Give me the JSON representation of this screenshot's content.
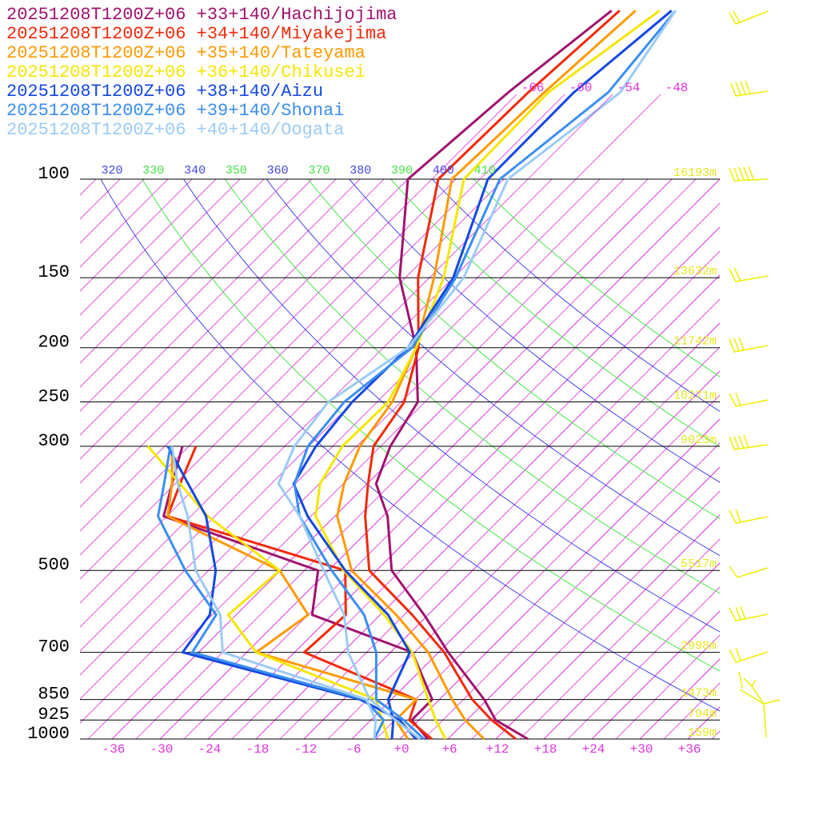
{
  "chart_data": {
    "type": "skewt",
    "pressure": [
      1000,
      925,
      850,
      700,
      600,
      500,
      400,
      350,
      300,
      250,
      200,
      150,
      100,
      70,
      50
    ],
    "series": [
      {
        "name": "20251208T1200Z+06 +33+140/Hachijojima",
        "color": "#a0126e",
        "values": [
          16.0,
          9.6,
          5.6,
          -4.8,
          -12.5,
          -22.1,
          -29.4,
          -34.9,
          -37.8,
          -39.9,
          -46.9,
          -57.7,
          -69.0,
          -67.3,
          -64.6
        ],
        "dewpoint": [
          3.5,
          -0.9,
          -0.9,
          -9.3,
          -26.5,
          -31.3,
          -57.4,
          -60.4,
          -63.8,
          null,
          null,
          null,
          null,
          null,
          null
        ]
      },
      {
        "name": "20251208T1200Z+06 +34+140/Miyakejima",
        "color": "#f02a0a",
        "values": [
          14.5,
          9.1,
          4.1,
          -5.3,
          -14.0,
          -24.9,
          -32.2,
          -35.9,
          -39.9,
          -41.6,
          -46.6,
          -55.4,
          -65.2,
          -64.8,
          -63.6
        ],
        "dewpoint": [
          4.0,
          -1.2,
          -2.9,
          -22.8,
          -22.3,
          -27.9,
          -56.9,
          -59.4,
          -62.1,
          null,
          null,
          null,
          null,
          null,
          null
        ]
      },
      {
        "name": "20251208T1200Z+06 +35+140/Tateyama",
        "color": "#ff9a00",
        "values": [
          10.5,
          5.8,
          1.6,
          -7.3,
          -16.0,
          -27.1,
          -35.7,
          -38.9,
          -41.6,
          -43.1,
          -46.9,
          -53.4,
          -63.5,
          -62.8,
          -61.6
        ],
        "dewpoint": [
          1.0,
          -2.9,
          -2.9,
          -28.8,
          -27.0,
          -36.1,
          -56.9,
          -60.4,
          -65.1,
          null,
          null,
          null,
          null,
          null,
          null
        ]
      },
      {
        "name": "20251208T1200Z+06 +36+140/Chikusei",
        "color": "#f5e600",
        "values": [
          5.7,
          2.1,
          -1.4,
          -9.3,
          -17.5,
          -28.1,
          -38.4,
          -41.9,
          -43.8,
          -43.6,
          -46.9,
          -52.2,
          -62.0,
          -62.3,
          -58.6
        ],
        "dewpoint": [
          -1.5,
          -4.6,
          -7.9,
          -28.8,
          -37.0,
          -36.1,
          -51.9,
          -59.4,
          -68.1,
          null,
          null,
          null,
          null,
          null,
          null
        ]
      },
      {
        "name": "20251208T1200Z+06 +38+140/Aizu",
        "color": "#1448e0",
        "values": [
          -1.0,
          -3.2,
          -6.4,
          -9.6,
          -17.0,
          -27.9,
          -39.4,
          -45.2,
          -47.1,
          -48.1,
          -47.9,
          -51.0,
          -59.0,
          -59.1,
          -57.1
        ],
        "dewpoint": [
          2.0,
          -2.4,
          -9.9,
          -38.0,
          -39.3,
          -44.1,
          -52.1,
          -58.4,
          -65.6,
          null,
          null,
          null,
          null,
          null,
          null
        ]
      },
      {
        "name": "20251208T1200Z+06 +39+140/Shonai",
        "color": "#3a8ef0",
        "values": [
          3.0,
          -1.9,
          -7.9,
          -13.8,
          -20.0,
          -29.6,
          -40.4,
          -45.1,
          -48.1,
          -49.1,
          -47.4,
          -50.7,
          -57.5,
          -54.8,
          -56.6
        ],
        "dewpoint": [
          -3.2,
          -4.4,
          -9.4,
          -36.8,
          -38.5,
          -47.9,
          -58.1,
          -61.4,
          -65.3,
          null,
          null,
          null,
          null,
          null,
          null
        ]
      },
      {
        "name": "20251208T1200Z+06 +40+140/Oogata",
        "color": "#9ccbf5",
        "values": [
          2.5,
          -2.9,
          -8.7,
          -17.3,
          -22.5,
          -30.6,
          -40.4,
          -47.1,
          -49.8,
          -51.1,
          -47.9,
          -49.7,
          -56.5,
          -53.3,
          -56.6
        ],
        "dewpoint": [
          -3.2,
          -5.4,
          -9.1,
          -33.0,
          -38.0,
          -46.6,
          -54.4,
          -59.7,
          -65.1,
          null,
          null,
          null,
          null,
          null,
          null
        ]
      }
    ],
    "xlim": [
      -40,
      40
    ],
    "xticks": [
      -36,
      -30,
      -24,
      -18,
      -12,
      -6,
      {
        "value": 0,
        "label": "+0"
      },
      {
        "value": 6,
        "label": "+6"
      },
      {
        "value": 12,
        "label": "+12"
      },
      {
        "value": 18,
        "label": "+18"
      },
      {
        "value": 24,
        "label": "+24"
      },
      {
        "value": 30,
        "label": "+30"
      },
      {
        "value": 36,
        "label": "+36"
      }
    ],
    "ylim": [
      1000,
      100
    ],
    "log_scale": true,
    "yticks": [
      100,
      150,
      200,
      250,
      300,
      500,
      700,
      850,
      925,
      1000
    ],
    "height_labels": [
      "16193m",
      "13632m",
      "11742m",
      "10271m",
      "9023m",
      "5517m",
      "2998m",
      "1473m",
      "794m",
      "159m"
    ],
    "isotherm_labels": [
      -66,
      -60,
      -54,
      -48
    ],
    "theta_labels": [
      320,
      330,
      340,
      350,
      360,
      370,
      380,
      390,
      400,
      410
    ],
    "adiabat_colors": [
      "#4646e6",
      "#46e646"
    ],
    "isotherm_color": "#dd33dd",
    "height_color": "#e6e622"
  }
}
